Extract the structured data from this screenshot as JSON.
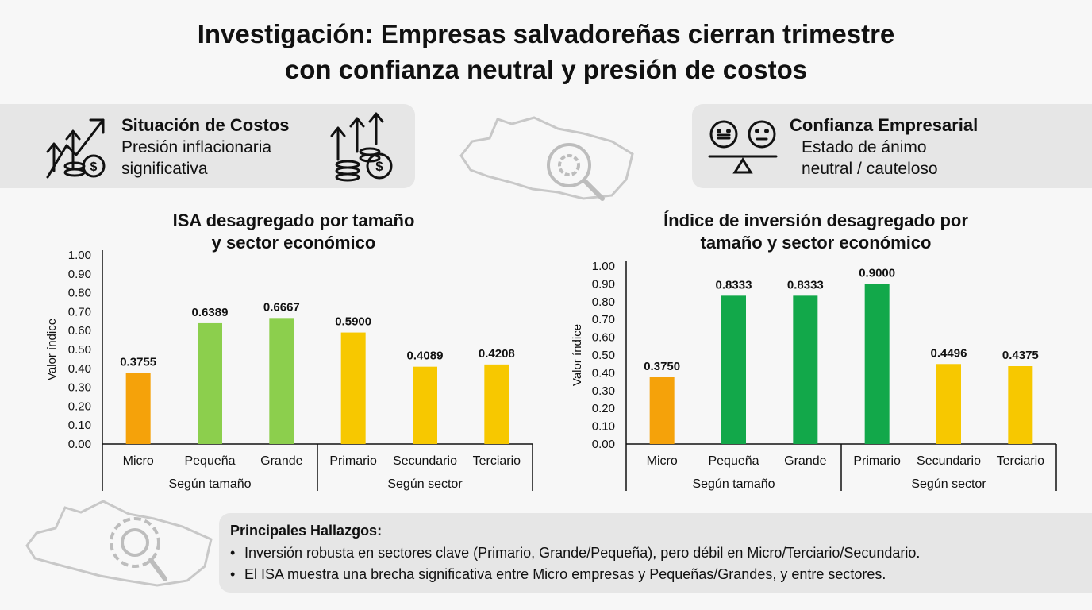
{
  "title_line1": "Investigación: Empresas salvadoreñas cierran trimestre",
  "title_line2": "con confianza neutral y presión de costos",
  "costs": {
    "heading": "Situación de Costos",
    "line1": "Presión inflacionaria",
    "line2": "significativa"
  },
  "confidence": {
    "heading": "Confianza Empresarial",
    "line1": "Estado de ánimo",
    "line2": "neutral / cauteloso"
  },
  "colors": {
    "orange": "#f5a20a",
    "light_green": "#8ccf4d",
    "yellow": "#f7c800",
    "green": "#12a84a"
  },
  "chart_data": [
    {
      "type": "bar",
      "title_line1": "ISA desagregado por tamaño",
      "title_line2": "y sector económico",
      "ylabel": "Valor índice",
      "ylim": [
        0,
        1
      ],
      "yticks": [
        "0.00",
        "0.10",
        "0.20",
        "0.30",
        "0.40",
        "0.50",
        "0.60",
        "0.70",
        "0.80",
        "0.90",
        "1.00"
      ],
      "categories": [
        "Micro",
        "Pequeña",
        "Grande",
        "Primario",
        "Secundario",
        "Terciario"
      ],
      "values": [
        0.3755,
        0.6389,
        0.6667,
        0.59,
        0.4089,
        0.4208
      ],
      "value_labels": [
        "0.3755",
        "0.6389",
        "0.6667",
        "0.5900",
        "0.4089",
        "0.4208"
      ],
      "bar_colors": [
        "orange",
        "light_green",
        "light_green",
        "yellow",
        "yellow",
        "yellow"
      ],
      "groups": [
        "Según tamaño",
        "Según sector"
      ]
    },
    {
      "type": "bar",
      "title_line1": "Índice de inversión desagregado por",
      "title_line2": "tamaño y sector económico",
      "ylabel": "Valor índice",
      "ylim": [
        0,
        1
      ],
      "yticks": [
        "0.00",
        "0.10",
        "0.20",
        "0.30",
        "0.40",
        "0.50",
        "0.60",
        "0.70",
        "0.80",
        "0.90",
        "1.00"
      ],
      "categories": [
        "Micro",
        "Pequeña",
        "Grande",
        "Primario",
        "Secundario",
        "Terciario"
      ],
      "values": [
        0.375,
        0.8333,
        0.8333,
        0.9,
        0.4496,
        0.4375
      ],
      "value_labels": [
        "0.3750",
        "0.8333",
        "0.8333",
        "0.9000",
        "0.4496",
        "0.4375"
      ],
      "bar_colors": [
        "orange",
        "green",
        "green",
        "green",
        "yellow",
        "yellow"
      ],
      "groups": [
        "Según tamaño",
        "Según sector"
      ]
    }
  ],
  "findings": {
    "heading": "Principales Hallazgos:",
    "bullet": "•",
    "items": [
      "Inversión robusta en sectores clave (Primario, Grande/Pequeña), pero débil en Micro/Terciario/Secundario.",
      "El ISA muestra una brecha significativa entre Micro empresas y Pequeñas/Grandes, y entre sectores."
    ]
  }
}
